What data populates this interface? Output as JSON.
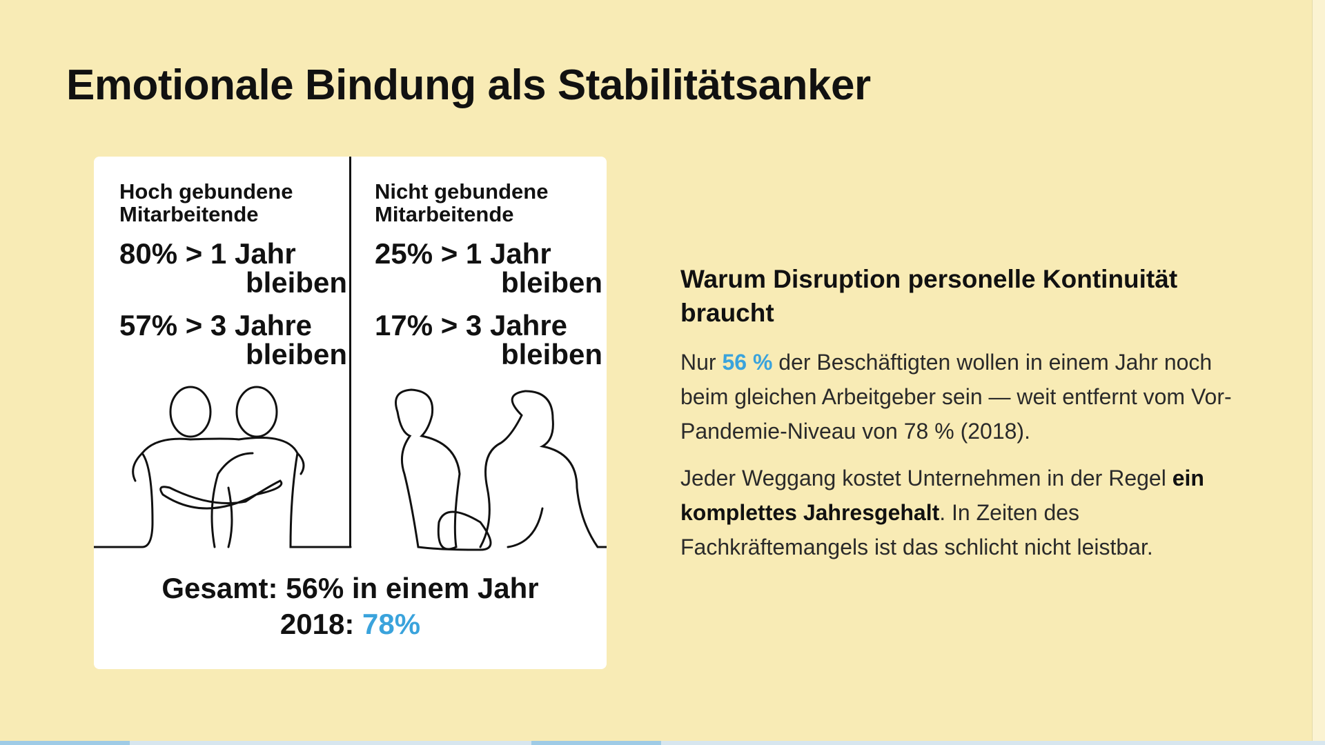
{
  "header": {
    "title": "Emotionale Bindung als Stabilitätsanker"
  },
  "card": {
    "columns": [
      {
        "heading": [
          "Hoch gebundene",
          "Mitarbeitende"
        ],
        "stats": [
          [
            "80% > 1 Jahr",
            "bleiben"
          ],
          [
            "57% > 3 Jahre",
            "bleiben"
          ]
        ]
      },
      {
        "heading": [
          "Nicht gebundene",
          "Mitarbeitende"
        ],
        "stats": [
          [
            "25% > 1 Jahr",
            "bleiben"
          ],
          [
            "17% > 3 Jahre",
            "bleiben"
          ]
        ]
      }
    ],
    "footer": {
      "line1": "Gesamt: 56% in einem Jahr",
      "line2_label": "2018: ",
      "line2_value": "78%"
    }
  },
  "aside": {
    "heading": "Warum Disruption personelle Kontinuität braucht",
    "paragraphs": [
      [
        "Nur ",
        "56 %",
        " der Beschäftigten wollen in einem Jahr noch beim gleichen Arbeitgeber sein — weit entfernt vom Vor-Pandemie-Niveau von 78 % (2018)."
      ],
      [
        "Jeder Weggang kostet Unternehmen in der Regel ",
        "ein komplettes Jahresgehalt",
        ". In Zeiten des Fachkräftemangels ist das schlicht nicht leistbar."
      ]
    ]
  }
}
